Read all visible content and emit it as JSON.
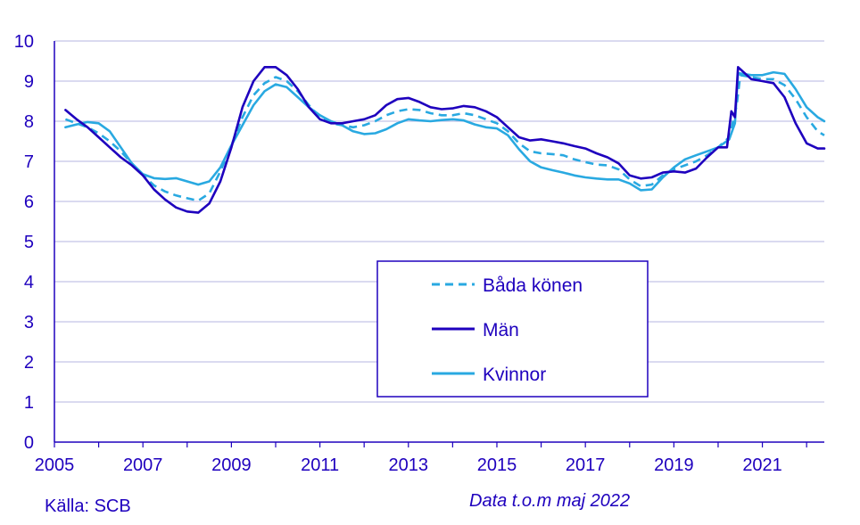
{
  "chart_data": {
    "type": "line",
    "title": "",
    "xlabel": "",
    "ylabel": "",
    "xlim": [
      2005,
      2022.4
    ],
    "ylim": [
      0,
      10
    ],
    "grid": true,
    "x_ticks": [
      "2005",
      "2007",
      "2009",
      "2011",
      "2013",
      "2015",
      "2017",
      "2019",
      "2021"
    ],
    "y_ticks": [
      "0",
      "1",
      "2",
      "3",
      "4",
      "5",
      "6",
      "7",
      "8",
      "9",
      "10"
    ],
    "legend_position": "center-right",
    "series": [
      {
        "name": "Båda könen",
        "color": "#29a9e1",
        "dash": "dashed",
        "points": [
          [
            2005.25,
            8.05
          ],
          [
            2005.5,
            7.95
          ],
          [
            2005.75,
            7.85
          ],
          [
            2006.0,
            7.7
          ],
          [
            2006.25,
            7.5
          ],
          [
            2006.5,
            7.25
          ],
          [
            2006.75,
            6.95
          ],
          [
            2007.0,
            6.65
          ],
          [
            2007.25,
            6.4
          ],
          [
            2007.5,
            6.25
          ],
          [
            2007.75,
            6.15
          ],
          [
            2008.0,
            6.08
          ],
          [
            2008.25,
            6.02
          ],
          [
            2008.5,
            6.2
          ],
          [
            2008.75,
            6.75
          ],
          [
            2009.0,
            7.4
          ],
          [
            2009.25,
            8.1
          ],
          [
            2009.5,
            8.65
          ],
          [
            2009.75,
            8.95
          ],
          [
            2010.0,
            9.1
          ],
          [
            2010.25,
            9.0
          ],
          [
            2010.5,
            8.75
          ],
          [
            2010.75,
            8.4
          ],
          [
            2011.0,
            8.1
          ],
          [
            2011.25,
            7.95
          ],
          [
            2011.5,
            7.9
          ],
          [
            2011.75,
            7.85
          ],
          [
            2012.0,
            7.9
          ],
          [
            2012.25,
            8.0
          ],
          [
            2012.5,
            8.15
          ],
          [
            2012.75,
            8.25
          ],
          [
            2013.0,
            8.3
          ],
          [
            2013.25,
            8.28
          ],
          [
            2013.5,
            8.2
          ],
          [
            2013.75,
            8.15
          ],
          [
            2014.0,
            8.15
          ],
          [
            2014.25,
            8.2
          ],
          [
            2014.5,
            8.15
          ],
          [
            2014.75,
            8.05
          ],
          [
            2015.0,
            7.95
          ],
          [
            2015.25,
            7.75
          ],
          [
            2015.5,
            7.45
          ],
          [
            2015.75,
            7.25
          ],
          [
            2016.0,
            7.2
          ],
          [
            2016.25,
            7.18
          ],
          [
            2016.5,
            7.15
          ],
          [
            2016.75,
            7.05
          ],
          [
            2017.0,
            6.98
          ],
          [
            2017.25,
            6.92
          ],
          [
            2017.5,
            6.9
          ],
          [
            2017.75,
            6.8
          ],
          [
            2018.0,
            6.55
          ],
          [
            2018.25,
            6.38
          ],
          [
            2018.5,
            6.42
          ],
          [
            2018.75,
            6.65
          ],
          [
            2019.0,
            6.8
          ],
          [
            2019.25,
            6.9
          ],
          [
            2019.5,
            7.0
          ],
          [
            2019.75,
            7.15
          ],
          [
            2020.0,
            7.35
          ],
          [
            2020.25,
            7.6
          ],
          [
            2020.35,
            8.05
          ],
          [
            2020.42,
            8.4
          ],
          [
            2020.5,
            9.15
          ],
          [
            2020.75,
            9.1
          ],
          [
            2021.0,
            9.05
          ],
          [
            2021.25,
            9.05
          ],
          [
            2021.5,
            8.9
          ],
          [
            2021.75,
            8.55
          ],
          [
            2022.0,
            8.1
          ],
          [
            2022.25,
            7.75
          ],
          [
            2022.4,
            7.65
          ]
        ]
      },
      {
        "name": "Män",
        "color": "#1e00be",
        "dash": "solid",
        "points": [
          [
            2005.25,
            8.28
          ],
          [
            2005.5,
            8.05
          ],
          [
            2005.75,
            7.85
          ],
          [
            2006.0,
            7.6
          ],
          [
            2006.25,
            7.35
          ],
          [
            2006.5,
            7.1
          ],
          [
            2006.75,
            6.9
          ],
          [
            2007.0,
            6.65
          ],
          [
            2007.25,
            6.3
          ],
          [
            2007.5,
            6.05
          ],
          [
            2007.75,
            5.85
          ],
          [
            2008.0,
            5.75
          ],
          [
            2008.25,
            5.72
          ],
          [
            2008.5,
            5.95
          ],
          [
            2008.75,
            6.5
          ],
          [
            2009.0,
            7.35
          ],
          [
            2009.25,
            8.35
          ],
          [
            2009.5,
            9.0
          ],
          [
            2009.75,
            9.35
          ],
          [
            2010.0,
            9.35
          ],
          [
            2010.25,
            9.15
          ],
          [
            2010.5,
            8.8
          ],
          [
            2010.75,
            8.35
          ],
          [
            2011.0,
            8.05
          ],
          [
            2011.25,
            7.95
          ],
          [
            2011.5,
            7.95
          ],
          [
            2011.75,
            8.0
          ],
          [
            2012.0,
            8.05
          ],
          [
            2012.25,
            8.15
          ],
          [
            2012.5,
            8.4
          ],
          [
            2012.75,
            8.55
          ],
          [
            2013.0,
            8.58
          ],
          [
            2013.25,
            8.48
          ],
          [
            2013.5,
            8.35
          ],
          [
            2013.75,
            8.3
          ],
          [
            2014.0,
            8.32
          ],
          [
            2014.25,
            8.38
          ],
          [
            2014.5,
            8.35
          ],
          [
            2014.75,
            8.25
          ],
          [
            2015.0,
            8.1
          ],
          [
            2015.25,
            7.85
          ],
          [
            2015.5,
            7.6
          ],
          [
            2015.75,
            7.52
          ],
          [
            2016.0,
            7.55
          ],
          [
            2016.25,
            7.5
          ],
          [
            2016.5,
            7.45
          ],
          [
            2016.75,
            7.38
          ],
          [
            2017.0,
            7.32
          ],
          [
            2017.25,
            7.2
          ],
          [
            2017.5,
            7.1
          ],
          [
            2017.75,
            6.95
          ],
          [
            2018.0,
            6.65
          ],
          [
            2018.25,
            6.57
          ],
          [
            2018.5,
            6.6
          ],
          [
            2018.75,
            6.72
          ],
          [
            2019.0,
            6.75
          ],
          [
            2019.25,
            6.72
          ],
          [
            2019.5,
            6.82
          ],
          [
            2019.75,
            7.1
          ],
          [
            2020.0,
            7.35
          ],
          [
            2020.2,
            7.35
          ],
          [
            2020.3,
            8.25
          ],
          [
            2020.38,
            8.1
          ],
          [
            2020.45,
            9.35
          ],
          [
            2020.75,
            9.05
          ],
          [
            2021.0,
            9.0
          ],
          [
            2021.25,
            8.95
          ],
          [
            2021.5,
            8.6
          ],
          [
            2021.75,
            7.95
          ],
          [
            2022.0,
            7.45
          ],
          [
            2022.25,
            7.32
          ],
          [
            2022.4,
            7.32
          ]
        ]
      },
      {
        "name": "Kvinnor",
        "color": "#29a9e1",
        "dash": "solid",
        "points": [
          [
            2005.25,
            7.85
          ],
          [
            2005.5,
            7.92
          ],
          [
            2005.75,
            7.98
          ],
          [
            2006.0,
            7.95
          ],
          [
            2006.25,
            7.75
          ],
          [
            2006.5,
            7.35
          ],
          [
            2006.75,
            6.95
          ],
          [
            2007.0,
            6.68
          ],
          [
            2007.25,
            6.58
          ],
          [
            2007.5,
            6.56
          ],
          [
            2007.75,
            6.58
          ],
          [
            2008.0,
            6.5
          ],
          [
            2008.25,
            6.42
          ],
          [
            2008.5,
            6.5
          ],
          [
            2008.75,
            6.85
          ],
          [
            2009.0,
            7.4
          ],
          [
            2009.25,
            7.9
          ],
          [
            2009.5,
            8.4
          ],
          [
            2009.75,
            8.75
          ],
          [
            2010.0,
            8.92
          ],
          [
            2010.25,
            8.85
          ],
          [
            2010.5,
            8.6
          ],
          [
            2010.75,
            8.35
          ],
          [
            2011.0,
            8.15
          ],
          [
            2011.25,
            8.0
          ],
          [
            2011.5,
            7.9
          ],
          [
            2011.75,
            7.75
          ],
          [
            2012.0,
            7.68
          ],
          [
            2012.25,
            7.7
          ],
          [
            2012.5,
            7.8
          ],
          [
            2012.75,
            7.95
          ],
          [
            2013.0,
            8.05
          ],
          [
            2013.25,
            8.02
          ],
          [
            2013.5,
            8.0
          ],
          [
            2013.75,
            8.03
          ],
          [
            2014.0,
            8.05
          ],
          [
            2014.25,
            8.02
          ],
          [
            2014.5,
            7.92
          ],
          [
            2014.75,
            7.85
          ],
          [
            2015.0,
            7.82
          ],
          [
            2015.25,
            7.65
          ],
          [
            2015.5,
            7.3
          ],
          [
            2015.75,
            7.0
          ],
          [
            2016.0,
            6.85
          ],
          [
            2016.25,
            6.78
          ],
          [
            2016.5,
            6.72
          ],
          [
            2016.75,
            6.65
          ],
          [
            2017.0,
            6.6
          ],
          [
            2017.25,
            6.57
          ],
          [
            2017.5,
            6.55
          ],
          [
            2017.75,
            6.55
          ],
          [
            2018.0,
            6.45
          ],
          [
            2018.25,
            6.28
          ],
          [
            2018.5,
            6.3
          ],
          [
            2018.75,
            6.6
          ],
          [
            2019.0,
            6.85
          ],
          [
            2019.25,
            7.05
          ],
          [
            2019.5,
            7.15
          ],
          [
            2019.75,
            7.25
          ],
          [
            2020.0,
            7.35
          ],
          [
            2020.25,
            7.55
          ],
          [
            2020.38,
            7.95
          ],
          [
            2020.45,
            9.2
          ],
          [
            2020.75,
            9.15
          ],
          [
            2021.0,
            9.15
          ],
          [
            2021.25,
            9.22
          ],
          [
            2021.5,
            9.18
          ],
          [
            2021.75,
            8.8
          ],
          [
            2022.0,
            8.35
          ],
          [
            2022.25,
            8.1
          ],
          [
            2022.4,
            8.0
          ]
        ]
      }
    ]
  },
  "footer": {
    "source": "Källa: SCB",
    "note": "Data t.o.m maj 2022"
  }
}
